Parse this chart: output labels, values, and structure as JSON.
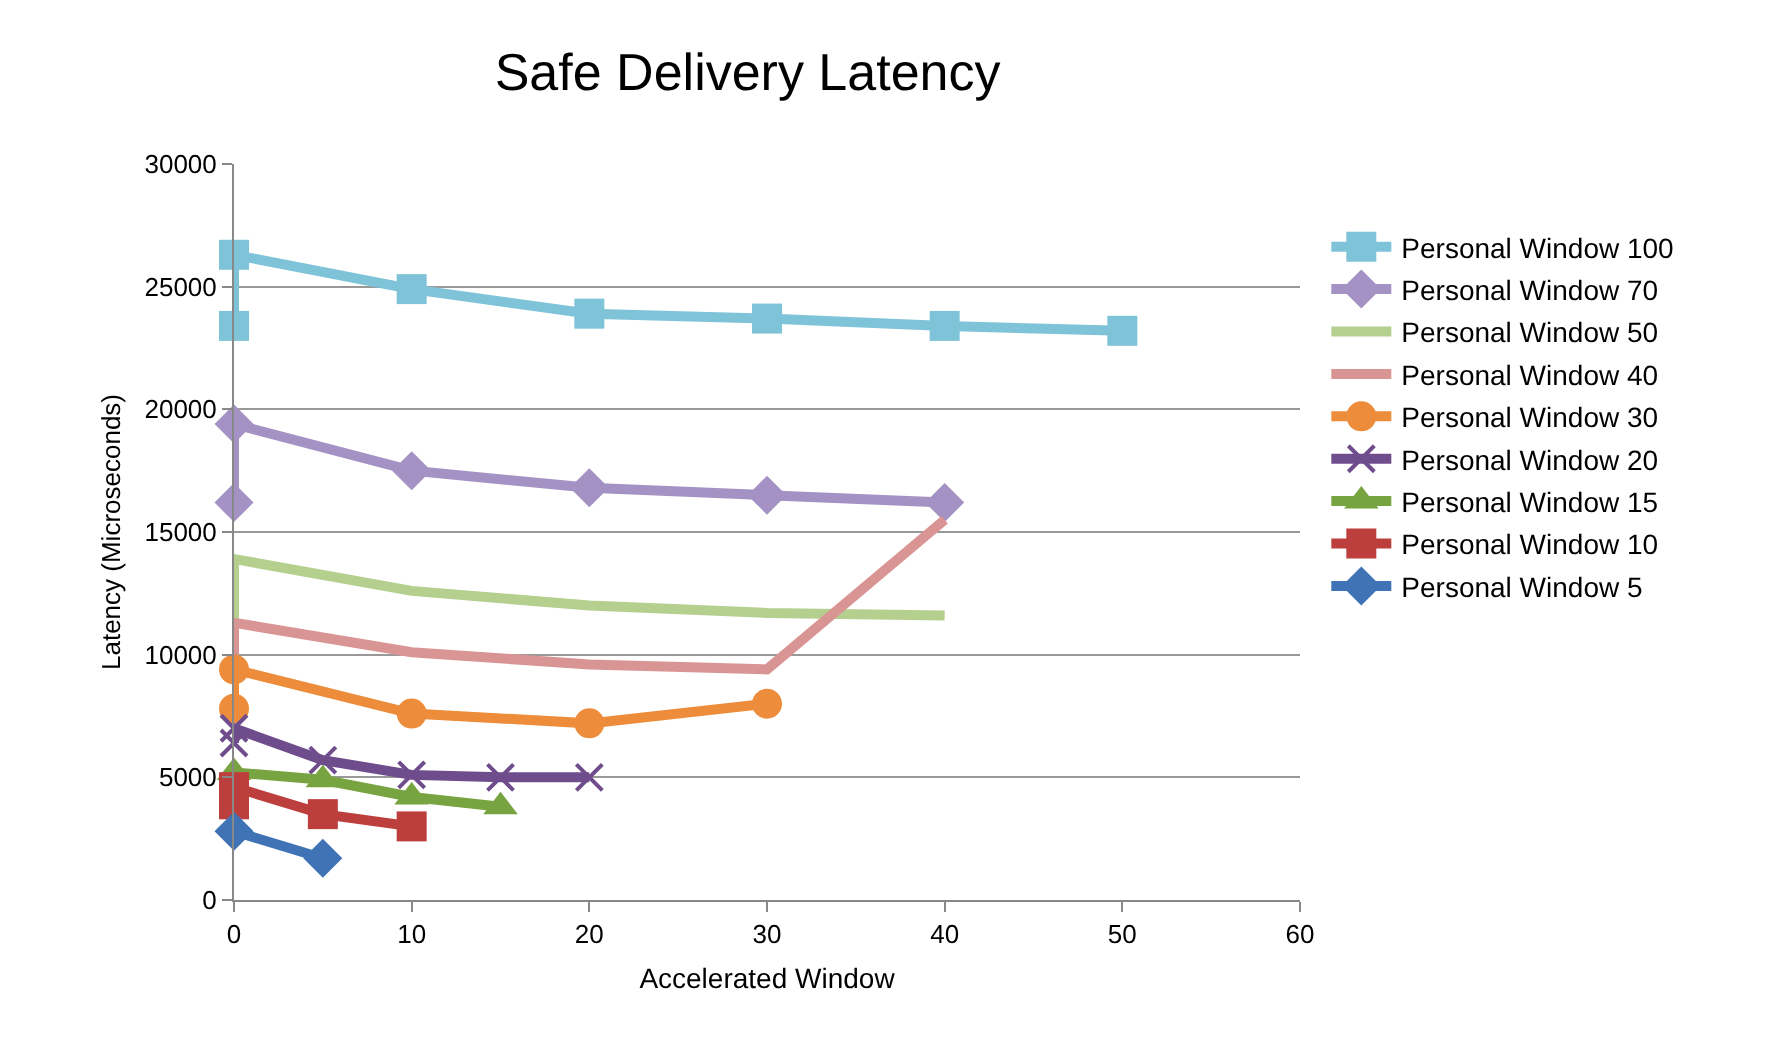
{
  "chart_data": {
    "type": "line",
    "title": "Safe Delivery Latency",
    "xlabel": "Accelerated Window",
    "ylabel": "Latency (Microseconds)",
    "xlim": [
      0,
      60
    ],
    "xticks": [
      0,
      10,
      20,
      30,
      40,
      50,
      60
    ],
    "ylim": [
      0,
      30000
    ],
    "yticks": [
      0,
      5000,
      10000,
      15000,
      20000,
      25000,
      30000
    ],
    "grid": "y",
    "legend": "right",
    "line_style": "solid",
    "series": [
      {
        "name": "Personal Window 100",
        "color": "#7fc3d8",
        "marker": "square",
        "x": [
          0,
          0,
          10,
          20,
          30,
          40,
          50
        ],
        "values": [
          23400,
          26300,
          24900,
          23900,
          23700,
          23400,
          23200
        ]
      },
      {
        "name": "Personal Window 70",
        "color": "#a392c3",
        "marker": "diamond",
        "x": [
          0,
          0,
          10,
          20,
          30,
          40
        ],
        "values": [
          16200,
          19400,
          17500,
          16800,
          16500,
          16200
        ]
      },
      {
        "name": "Personal Window 50",
        "color": "#b5cf8f",
        "marker": "none",
        "x": [
          0,
          0,
          10,
          20,
          30,
          40
        ],
        "values": [
          11100,
          13900,
          12600,
          12000,
          11700,
          11600
        ]
      },
      {
        "name": "Personal Window 40",
        "color": "#d99594",
        "marker": "none",
        "x": [
          0,
          0,
          10,
          20,
          30,
          40
        ],
        "values": [
          10000,
          11300,
          10100,
          9600,
          9400,
          15500
        ]
      },
      {
        "name": "Personal Window 30",
        "color": "#ed8c3a",
        "marker": "circle",
        "x": [
          0,
          0,
          10,
          20,
          30
        ],
        "values": [
          7800,
          9400,
          7600,
          7200,
          8000
        ]
      },
      {
        "name": "Personal Window 20",
        "color": "#6f4d8d",
        "marker": "cross",
        "x": [
          0,
          0,
          5,
          10,
          15,
          20
        ],
        "values": [
          6400,
          7000,
          5700,
          5100,
          5000,
          5000
        ]
      },
      {
        "name": "Personal Window 15",
        "color": "#77a340",
        "marker": "triangle",
        "x": [
          0,
          5,
          10,
          15
        ],
        "values": [
          5200,
          4900,
          4200,
          3800
        ]
      },
      {
        "name": "Personal Window 10",
        "color": "#bd3f3d",
        "marker": "square",
        "x": [
          0,
          0,
          5,
          10
        ],
        "values": [
          3900,
          4600,
          3500,
          3000
        ]
      },
      {
        "name": "Personal Window 5",
        "color": "#3f73b5",
        "marker": "diamond",
        "x": [
          0,
          5
        ],
        "values": [
          2800,
          1700
        ]
      }
    ]
  }
}
